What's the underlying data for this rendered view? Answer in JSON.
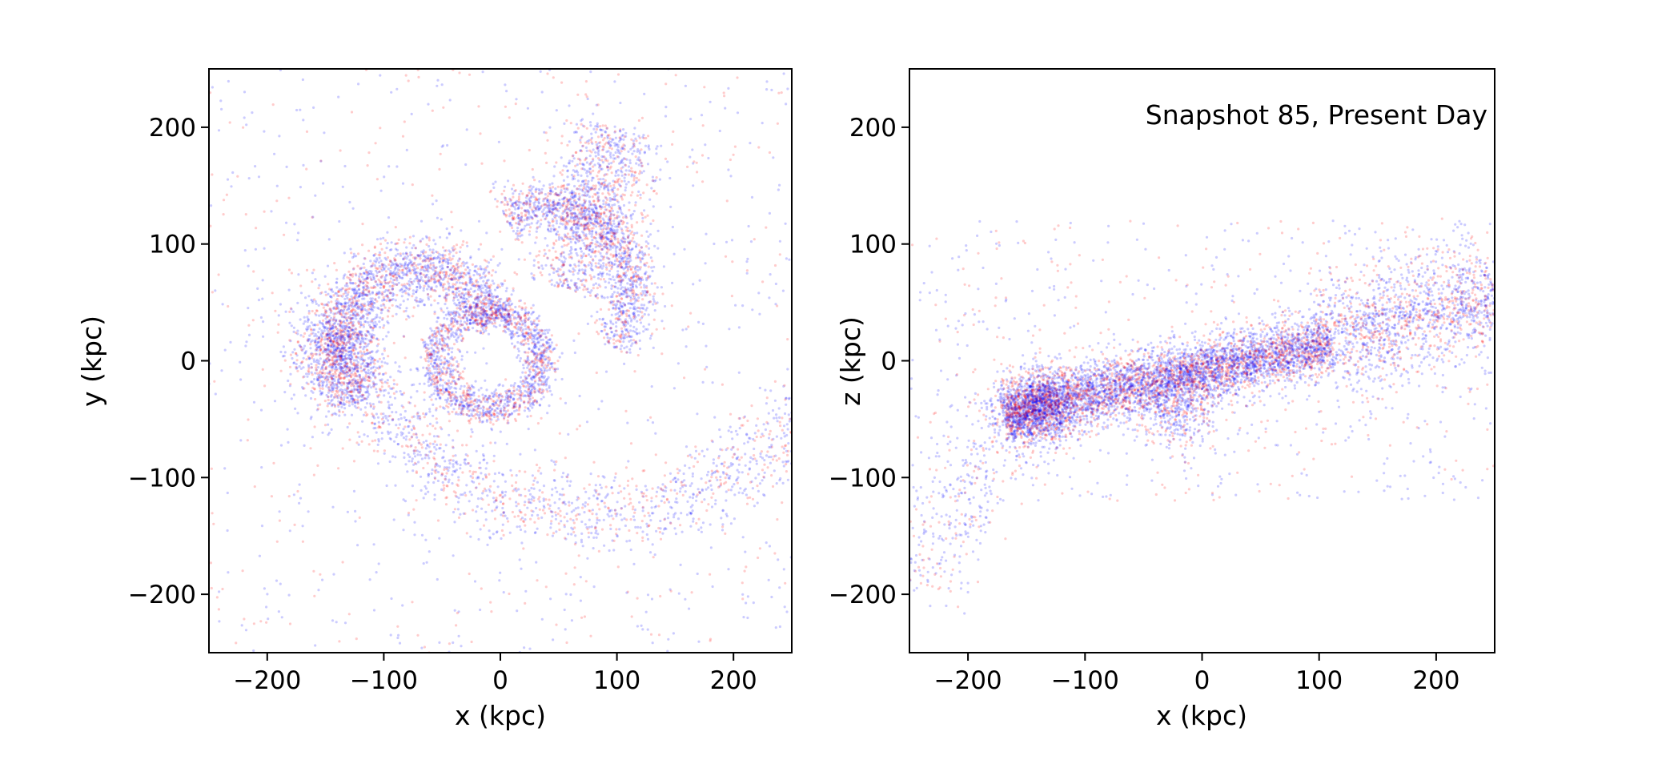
{
  "chart_data": [
    {
      "type": "scatter",
      "xlabel": "x (kpc)",
      "ylabel": "y (kpc)",
      "xlim": [
        -250,
        250
      ],
      "ylim": [
        -250,
        250
      ],
      "xticks": [
        -200,
        -100,
        0,
        100,
        200
      ],
      "yticks": [
        -200,
        -100,
        0,
        100,
        200
      ],
      "xtick_labels": [
        "−200",
        "−100",
        "0",
        "100",
        "200"
      ],
      "ytick_labels": [
        "−200",
        "−100",
        "0",
        "100",
        "200"
      ],
      "annotation": "",
      "grid": false,
      "series": [
        {
          "color": "#ff0000",
          "alpha": 0.2
        },
        {
          "color": "#0000ff",
          "alpha": 0.2
        }
      ],
      "structures": [
        {
          "kind": "ellipse",
          "cx": -10,
          "cy": 0,
          "rx": 55,
          "ry": 50,
          "angle": 0,
          "weight": 0.18,
          "hole": 0.45
        },
        {
          "kind": "arc",
          "cx": -70,
          "cy": 10,
          "r": 70,
          "start": 20,
          "end": 220,
          "width": 22,
          "weight": 0.22
        },
        {
          "kind": "blob",
          "cx": -140,
          "cy": 10,
          "rx": 35,
          "ry": 45,
          "weight": 0.08
        },
        {
          "kind": "arc",
          "cx": 40,
          "cy": 60,
          "r": 75,
          "start": 120,
          "end": -40,
          "width": 18,
          "weight": 0.14
        },
        {
          "kind": "band",
          "x0": 60,
          "y0": 60,
          "x1": 100,
          "y1": 200,
          "width": 35,
          "weight": 0.12
        },
        {
          "kind": "arc",
          "cx": 80,
          "cy": 100,
          "r": 230,
          "start": 200,
          "end": 330,
          "width": 28,
          "weight": 0.16
        },
        {
          "kind": "halo",
          "cx": 0,
          "cy": 0,
          "rx": 250,
          "ry": 250,
          "weight": 0.1
        }
      ]
    },
    {
      "type": "scatter",
      "xlabel": "x (kpc)",
      "ylabel": "z (kpc)",
      "xlim": [
        -250,
        250
      ],
      "ylim": [
        -250,
        250
      ],
      "xticks": [
        -200,
        -100,
        0,
        100,
        200
      ],
      "yticks": [
        -200,
        -100,
        0,
        100,
        200
      ],
      "xtick_labels": [
        "−200",
        "−100",
        "0",
        "100",
        "200"
      ],
      "ytick_labels": [
        "−200",
        "−100",
        "0",
        "100",
        "200"
      ],
      "annotation": "Snapshot 85, Present Day",
      "grid": false,
      "series": [
        {
          "color": "#ff0000",
          "alpha": 0.2
        },
        {
          "color": "#0000ff",
          "alpha": 0.2
        }
      ],
      "structures": [
        {
          "kind": "band",
          "x0": -170,
          "y0": -45,
          "x1": 110,
          "y1": 15,
          "width": 22,
          "weight": 0.55
        },
        {
          "kind": "blob",
          "cx": -140,
          "cy": -40,
          "rx": 30,
          "ry": 25,
          "weight": 0.12
        },
        {
          "kind": "blob",
          "cx": -20,
          "cy": -40,
          "rx": 30,
          "ry": 30,
          "weight": 0.05
        },
        {
          "kind": "band",
          "x0": 110,
          "y0": 15,
          "x1": 250,
          "y1": 60,
          "width": 40,
          "weight": 0.16
        },
        {
          "kind": "band",
          "x0": -250,
          "y0": -200,
          "x1": -160,
          "y1": -50,
          "width": 30,
          "weight": 0.04
        },
        {
          "kind": "halo",
          "cx": 0,
          "cy": 0,
          "rx": 250,
          "ry": 120,
          "weight": 0.08
        }
      ]
    }
  ]
}
